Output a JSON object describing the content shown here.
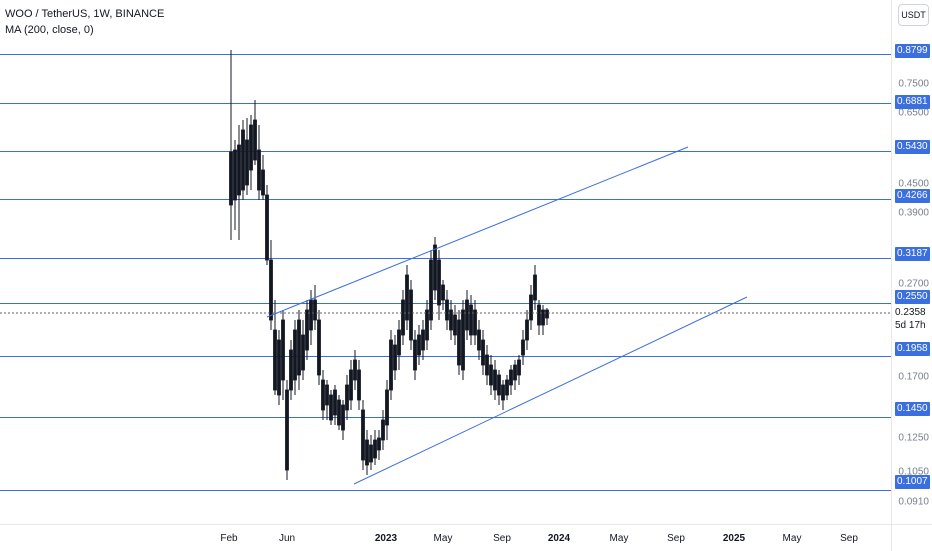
{
  "legend": {
    "title": "WOO / TetherUS, 1W, BINANCE",
    "ma": "MA (200, close, 0)"
  },
  "price_scale": {
    "currency": "USDT",
    "ticks": [
      "0.7500",
      "0.6500",
      "0.4500",
      "0.3900",
      "0.2700",
      "0.1700",
      "0.1250",
      "0.1050",
      "0.0910"
    ],
    "level_labels": [
      "0.8799",
      "0.6881",
      "0.5430",
      "0.4266",
      "0.3187",
      "0.2550",
      "0.1958",
      "0.1450",
      "0.1007"
    ],
    "current_price": "0.2358",
    "countdown": "5d 17h"
  },
  "time_scale": {
    "labels": [
      {
        "text": "Feb",
        "bold": false
      },
      {
        "text": "Jun",
        "bold": false
      },
      {
        "text": "2023",
        "bold": true
      },
      {
        "text": "May",
        "bold": false
      },
      {
        "text": "Sep",
        "bold": false
      },
      {
        "text": "2024",
        "bold": true
      },
      {
        "text": "May",
        "bold": false
      },
      {
        "text": "Sep",
        "bold": false
      },
      {
        "text": "2025",
        "bold": true
      },
      {
        "text": "May",
        "bold": false
      },
      {
        "text": "Sep",
        "bold": false
      }
    ]
  },
  "chart_data": {
    "type": "candlestick",
    "symbol": "WOO/USDT",
    "interval": "1W",
    "exchange": "BINANCE",
    "horizontal_levels": [
      0.8799,
      0.6881,
      0.543,
      0.4266,
      0.3187,
      0.255,
      0.1958,
      0.145,
      0.1007
    ],
    "current_price": 0.2358,
    "y_scale": "log",
    "ylim": [
      0.085,
      1.15
    ],
    "colors": {
      "line": "#3b6fe0",
      "candle": "#131722",
      "axis_text": "#777f8c"
    }
  }
}
